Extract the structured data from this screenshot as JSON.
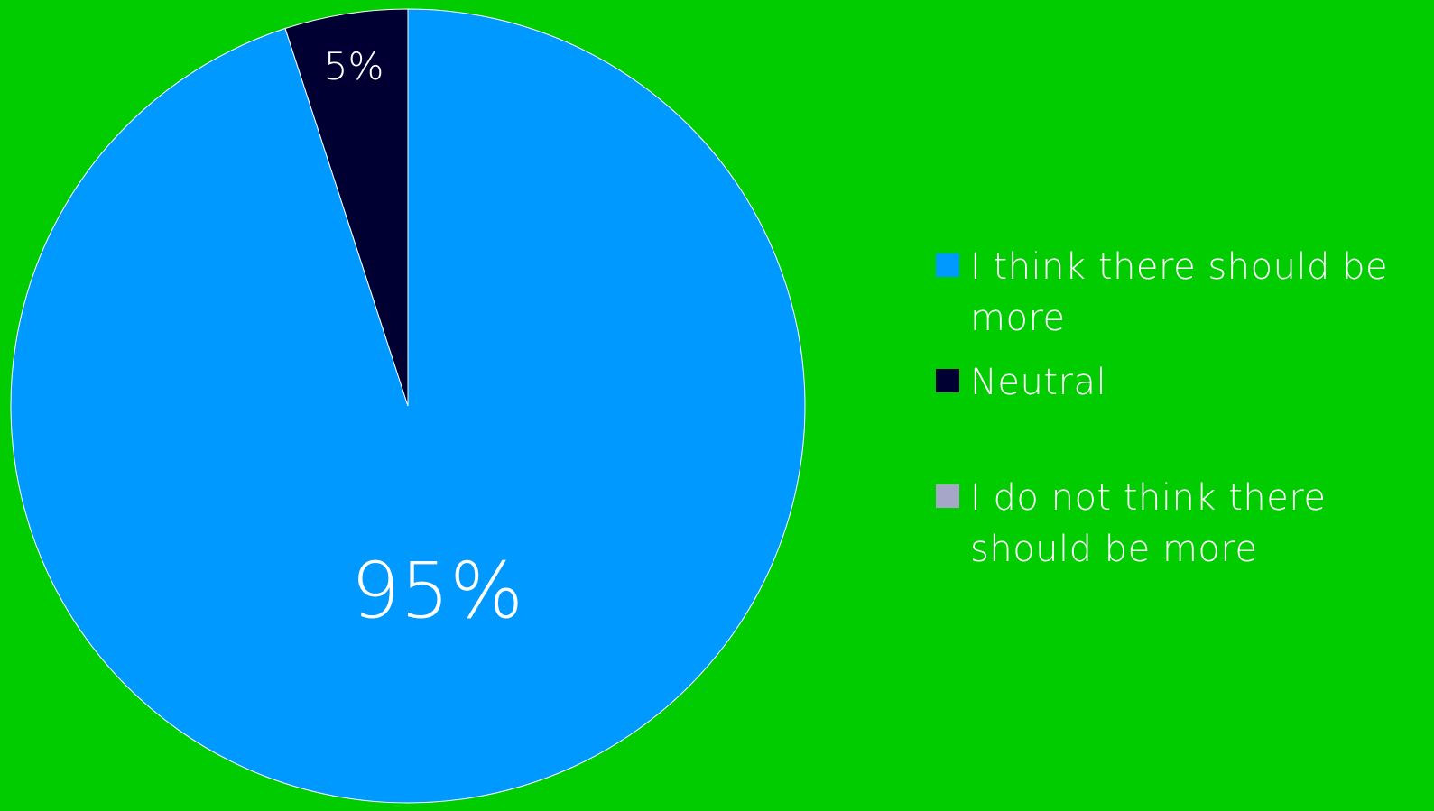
{
  "colors": {
    "background": "#00cc00",
    "label_text": "#ffffff"
  },
  "chart_data": {
    "type": "pie",
    "title": "",
    "legend_position": "right",
    "start_angle_deg": 0,
    "direction": "clockwise",
    "slices": [
      {
        "label": "I think there should be more",
        "value": 95,
        "display": "95%",
        "color": "#0099ff"
      },
      {
        "label": "Neutral",
        "value": 5,
        "display": "5%",
        "color": "#000033"
      },
      {
        "label": "I do not think there should be more",
        "value": 0,
        "display": "",
        "color": "#a6a6c9"
      }
    ]
  }
}
